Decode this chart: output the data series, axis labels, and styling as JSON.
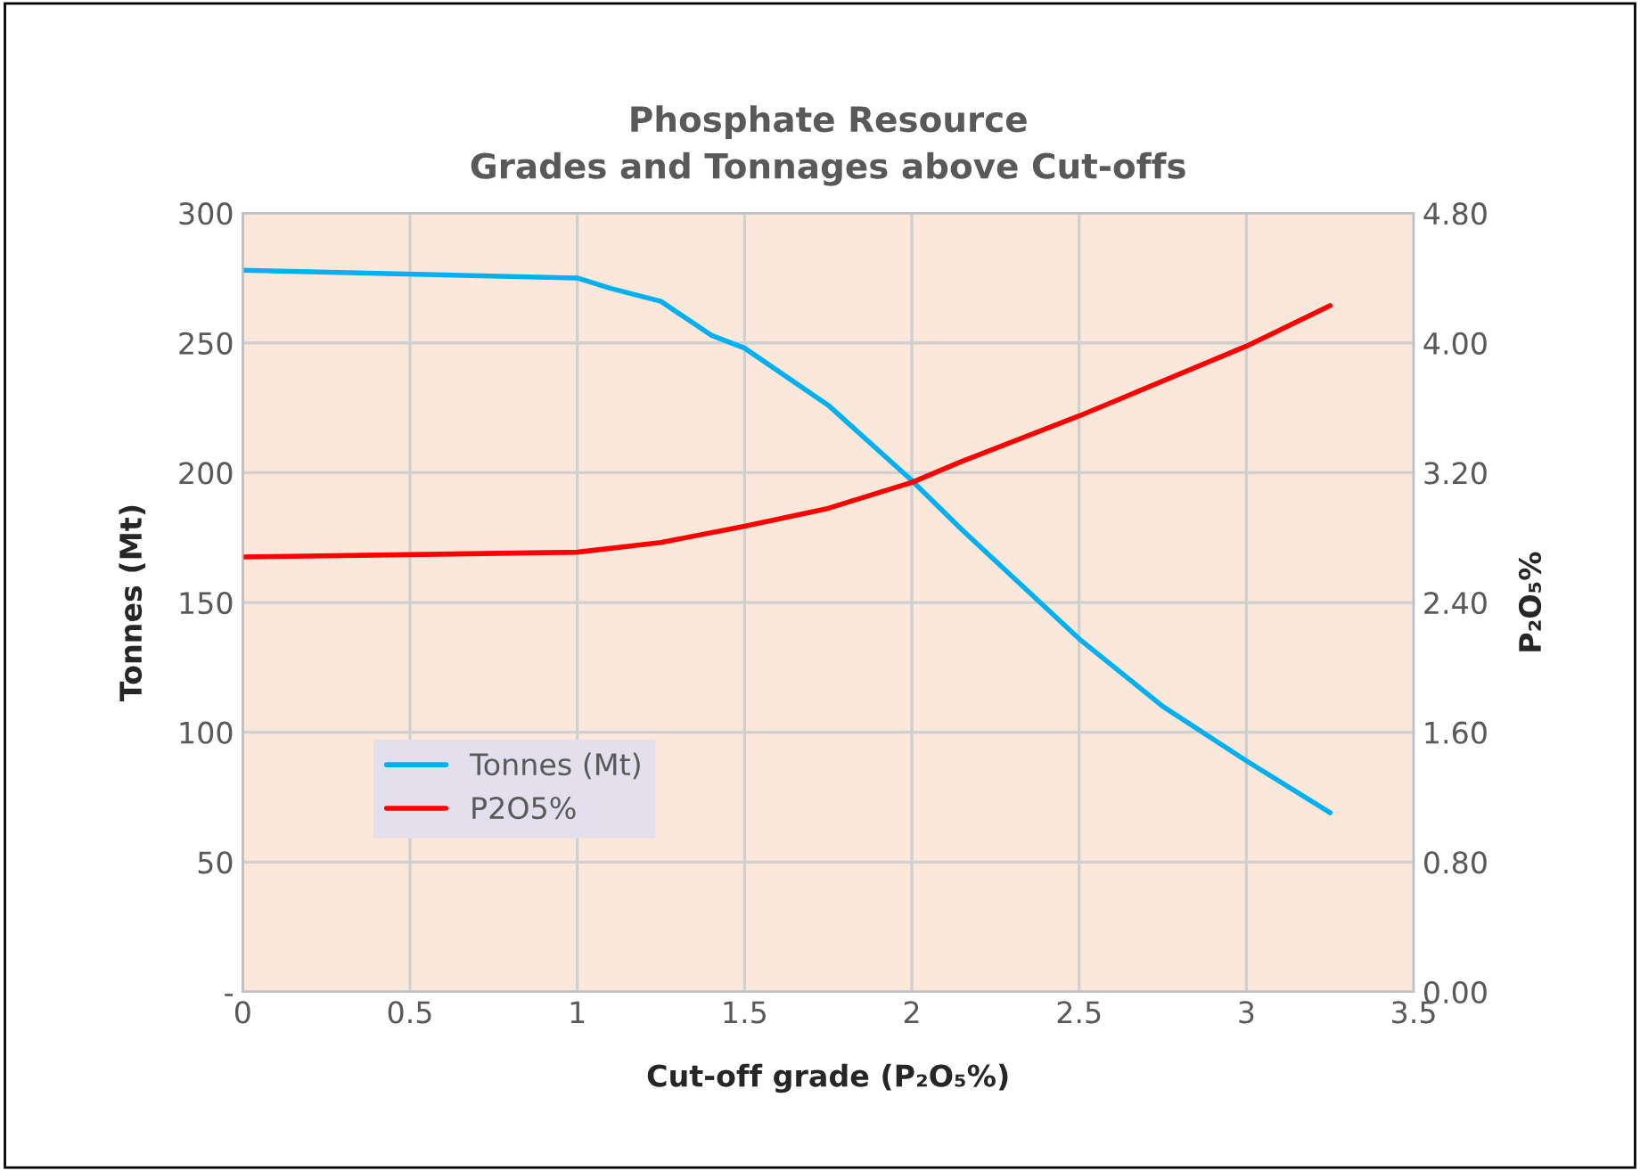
{
  "chart_data": {
    "type": "line",
    "title": "Phosphate Resource\nGrades and Tonnages above Cut-offs",
    "xlabel": "Cut-off grade (P₂O₅%)",
    "ylabel": "Tonnes (Mt)",
    "y2label": "P₂O₅%",
    "series": [
      {
        "name": "Tonnes (Mt)",
        "color": "#00b0f0",
        "x": [
          0,
          1,
          1.1,
          1.25,
          1.4,
          1.5,
          1.75,
          2,
          2.15,
          2.5,
          2.75,
          3,
          3.25
        ],
        "values": [
          278,
          275,
          271,
          266,
          253,
          248,
          226,
          197,
          178,
          136,
          110,
          89,
          69
        ]
      },
      {
        "name": "P2O5%",
        "color": "#ff0000",
        "axis": "y2",
        "x": [
          0,
          1,
          1.25,
          1.5,
          1.75,
          2,
          2.15,
          2.5,
          3,
          3.25
        ],
        "values": [
          2.68,
          2.71,
          2.77,
          2.87,
          2.98,
          3.14,
          3.27,
          3.55,
          3.98,
          4.23
        ]
      }
    ],
    "xlim": [
      0,
      3.5
    ],
    "xticks": [
      0,
      0.5,
      1,
      1.5,
      2,
      2.5,
      3,
      3.5
    ],
    "ylim": [
      0,
      300
    ],
    "yticks": [
      {
        "value": 0,
        "label": "-"
      },
      50,
      100,
      150,
      200,
      250,
      300
    ],
    "y2lim": [
      0,
      4.8
    ],
    "y2ticks": [
      {
        "value": 0,
        "label": "0.00"
      },
      {
        "value": 0.8,
        "label": "0.80"
      },
      {
        "value": 1.6,
        "label": "1.60"
      },
      {
        "value": 2.4,
        "label": "2.40"
      },
      {
        "value": 3.2,
        "label": "3.20"
      },
      {
        "value": 4,
        "label": "4.00"
      },
      {
        "value": 4.8,
        "label": "4.80"
      }
    ],
    "grid": true,
    "legend": "lower left",
    "marker": "none",
    "line_style": "solid"
  }
}
